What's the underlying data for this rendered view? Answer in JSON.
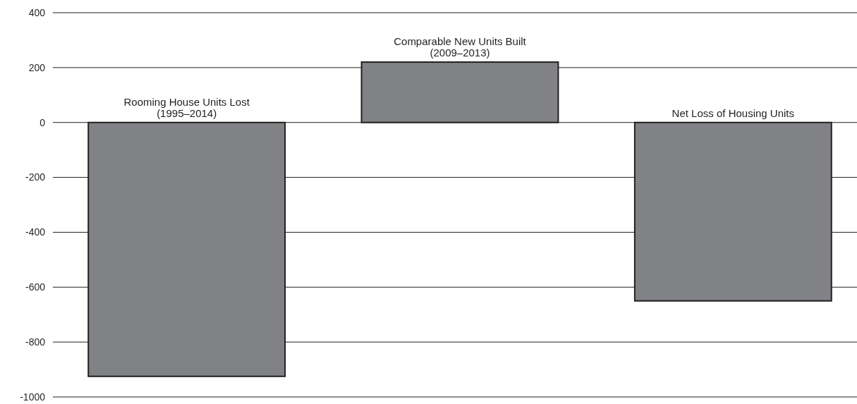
{
  "chart_data": {
    "type": "bar",
    "categories": [
      "Rooming House Units Lost\n(1995–2014)",
      "Comparable New Units Built\n(2009–2013)",
      "Net Loss of Housing Units"
    ],
    "values": [
      -925,
      220,
      -650
    ],
    "color": "#818285",
    "ylim": [
      -1000,
      400
    ],
    "yticks": [
      -1000,
      -800,
      -600,
      -400,
      -200,
      0,
      200,
      400
    ],
    "grid": "y"
  }
}
